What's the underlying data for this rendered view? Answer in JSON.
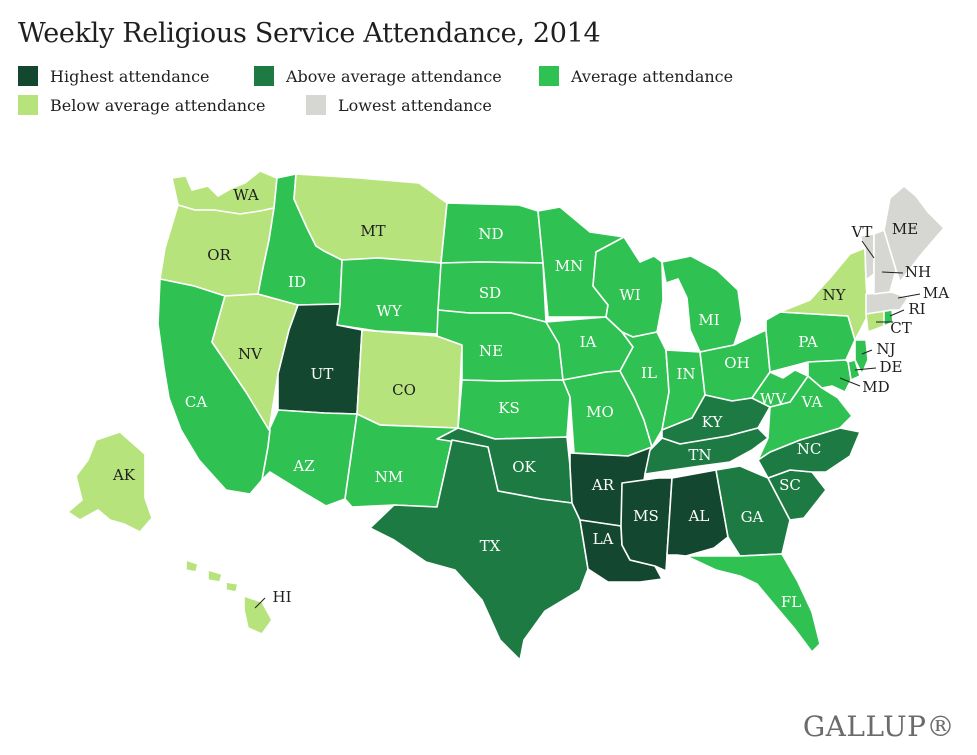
{
  "title": "Weekly Religious Service Attendance, 2014",
  "colors": {
    "highest": "#13472f",
    "above": "#1c7a42",
    "average": "#2fc152",
    "below": "#b6e37c",
    "lowest": "#d6d6d2"
  },
  "legend": [
    {
      "key": "highest",
      "label": "Highest attendance"
    },
    {
      "key": "above",
      "label": "Above average attendance"
    },
    {
      "key": "average",
      "label": "Average attendance"
    },
    {
      "key": "below",
      "label": "Below average attendance"
    },
    {
      "key": "lowest",
      "label": "Lowest attendance"
    }
  ],
  "states": [
    {
      "abbr": "WA",
      "category": "below"
    },
    {
      "abbr": "OR",
      "category": "below"
    },
    {
      "abbr": "CA",
      "category": "average"
    },
    {
      "abbr": "NV",
      "category": "below"
    },
    {
      "abbr": "ID",
      "category": "average"
    },
    {
      "abbr": "MT",
      "category": "below"
    },
    {
      "abbr": "WY",
      "category": "average"
    },
    {
      "abbr": "UT",
      "category": "highest"
    },
    {
      "abbr": "CO",
      "category": "below"
    },
    {
      "abbr": "AZ",
      "category": "average"
    },
    {
      "abbr": "NM",
      "category": "average"
    },
    {
      "abbr": "ND",
      "category": "average"
    },
    {
      "abbr": "SD",
      "category": "average"
    },
    {
      "abbr": "NE",
      "category": "average"
    },
    {
      "abbr": "KS",
      "category": "average"
    },
    {
      "abbr": "OK",
      "category": "above"
    },
    {
      "abbr": "TX",
      "category": "above"
    },
    {
      "abbr": "MN",
      "category": "average"
    },
    {
      "abbr": "IA",
      "category": "average"
    },
    {
      "abbr": "MO",
      "category": "average"
    },
    {
      "abbr": "AR",
      "category": "highest"
    },
    {
      "abbr": "LA",
      "category": "highest"
    },
    {
      "abbr": "WI",
      "category": "average"
    },
    {
      "abbr": "IL",
      "category": "average"
    },
    {
      "abbr": "MI",
      "category": "average"
    },
    {
      "abbr": "IN",
      "category": "average"
    },
    {
      "abbr": "OH",
      "category": "average"
    },
    {
      "abbr": "KY",
      "category": "above"
    },
    {
      "abbr": "TN",
      "category": "above"
    },
    {
      "abbr": "MS",
      "category": "highest"
    },
    {
      "abbr": "AL",
      "category": "highest"
    },
    {
      "abbr": "GA",
      "category": "above"
    },
    {
      "abbr": "FL",
      "category": "average"
    },
    {
      "abbr": "SC",
      "category": "above"
    },
    {
      "abbr": "NC",
      "category": "above"
    },
    {
      "abbr": "VA",
      "category": "average"
    },
    {
      "abbr": "WV",
      "category": "average"
    },
    {
      "abbr": "PA",
      "category": "average"
    },
    {
      "abbr": "NY",
      "category": "below"
    },
    {
      "abbr": "NJ",
      "category": "average"
    },
    {
      "abbr": "DE",
      "category": "average"
    },
    {
      "abbr": "MD",
      "category": "average"
    },
    {
      "abbr": "CT",
      "category": "below"
    },
    {
      "abbr": "RI",
      "category": "average"
    },
    {
      "abbr": "MA",
      "category": "lowest"
    },
    {
      "abbr": "VT",
      "category": "lowest"
    },
    {
      "abbr": "NH",
      "category": "lowest"
    },
    {
      "abbr": "ME",
      "category": "lowest"
    },
    {
      "abbr": "AK",
      "category": "below"
    },
    {
      "abbr": "HI",
      "category": "below"
    }
  ],
  "source": "GALLUP®"
}
